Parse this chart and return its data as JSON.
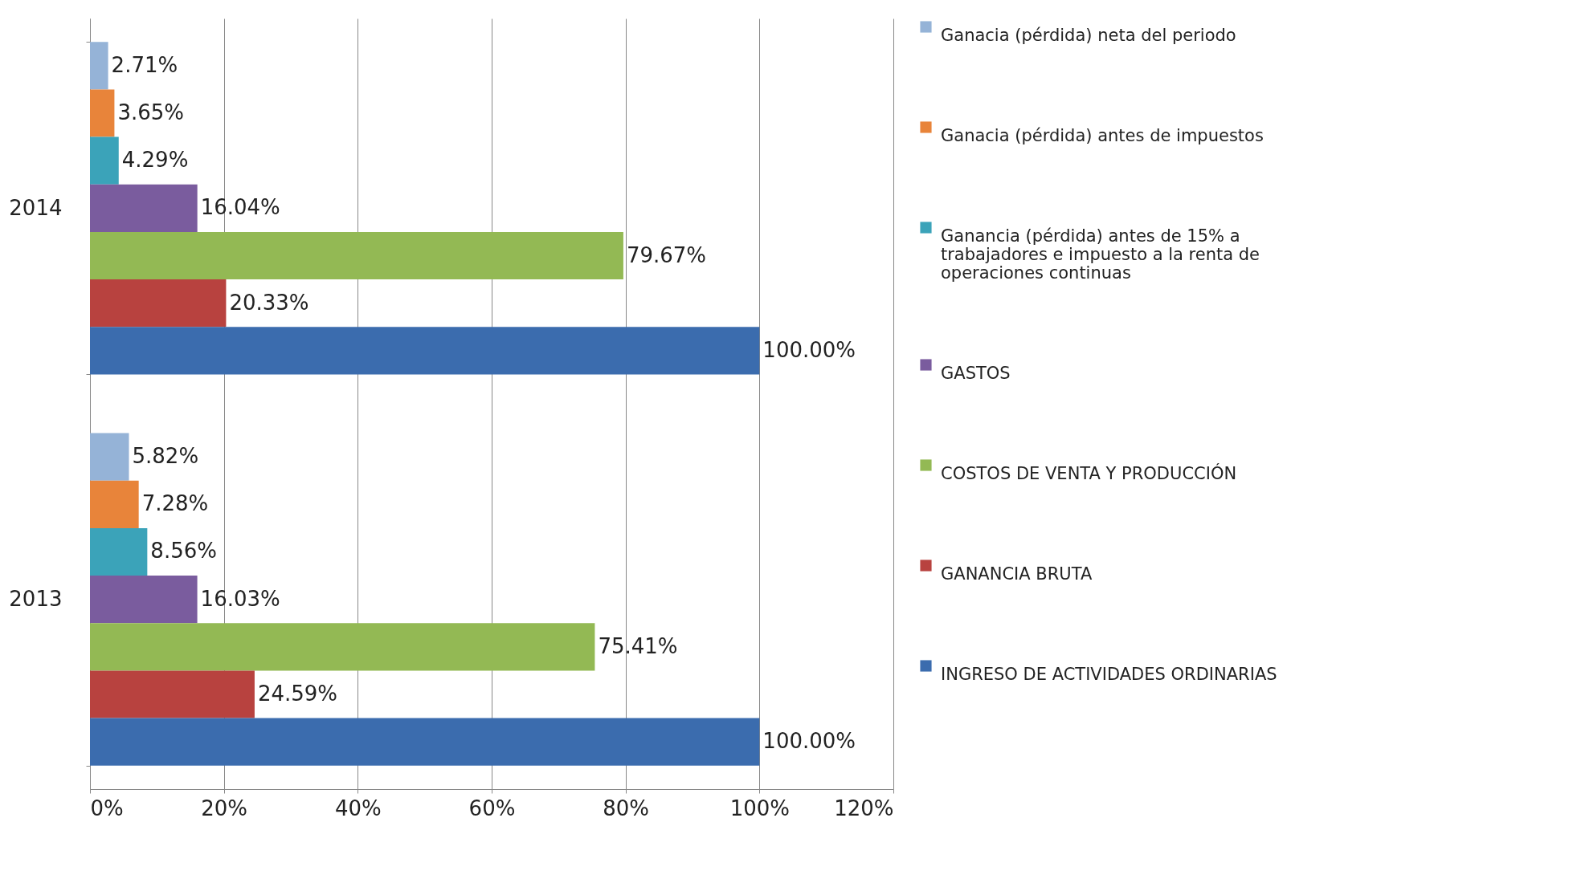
{
  "chart_data": {
    "type": "bar",
    "orientation": "horizontal",
    "categories": [
      "2014",
      "2013"
    ],
    "series": [
      {
        "name": "Ganacia (pérdida) neta del periodo",
        "color": "#95b3d7",
        "values": [
          2.71,
          5.82
        ],
        "value_labels": [
          "2.71%",
          "5.82%"
        ]
      },
      {
        "name": "Ganacia (pérdida) antes de impuestos",
        "color": "#e8843a",
        "values": [
          3.65,
          7.28
        ],
        "value_labels": [
          "3.65%",
          "7.28%"
        ]
      },
      {
        "name": "Ganancia (pérdida) antes de 15% a trabajadores e impuesto a la renta de operaciones continuas",
        "color": "#3ba3b9",
        "values": [
          4.29,
          8.56
        ],
        "value_labels": [
          "4.29%",
          "8.56%"
        ]
      },
      {
        "name": "GASTOS",
        "color": "#7a5c9e",
        "values": [
          16.04,
          16.03
        ],
        "value_labels": [
          "16.04%",
          "16.03%"
        ]
      },
      {
        "name": "COSTOS DE VENTA Y PRODUCCIÓN",
        "color": "#93b954",
        "values": [
          79.67,
          75.41
        ],
        "value_labels": [
          "79.67%",
          "75.41%"
        ]
      },
      {
        "name": "GANANCIA BRUTA",
        "color": "#b8423f",
        "values": [
          20.33,
          24.59
        ],
        "value_labels": [
          "20.33%",
          "24.59%"
        ]
      },
      {
        "name": "INGRESO DE ACTIVIDADES ORDINARIAS",
        "color": "#3b6cae",
        "values": [
          100.0,
          100.0
        ],
        "value_labels": [
          "100.00%",
          "100.00%"
        ]
      }
    ],
    "xlim": [
      0,
      120
    ],
    "xticks": [
      {
        "value": 0,
        "label": "0%"
      },
      {
        "value": 20,
        "label": "20%"
      },
      {
        "value": 40,
        "label": "40%"
      },
      {
        "value": 60,
        "label": "60%"
      },
      {
        "value": 80,
        "label": "80%"
      },
      {
        "value": 100,
        "label": "100%"
      },
      {
        "value": 120,
        "label": "120%"
      }
    ],
    "grid": "x",
    "legend": "right"
  }
}
